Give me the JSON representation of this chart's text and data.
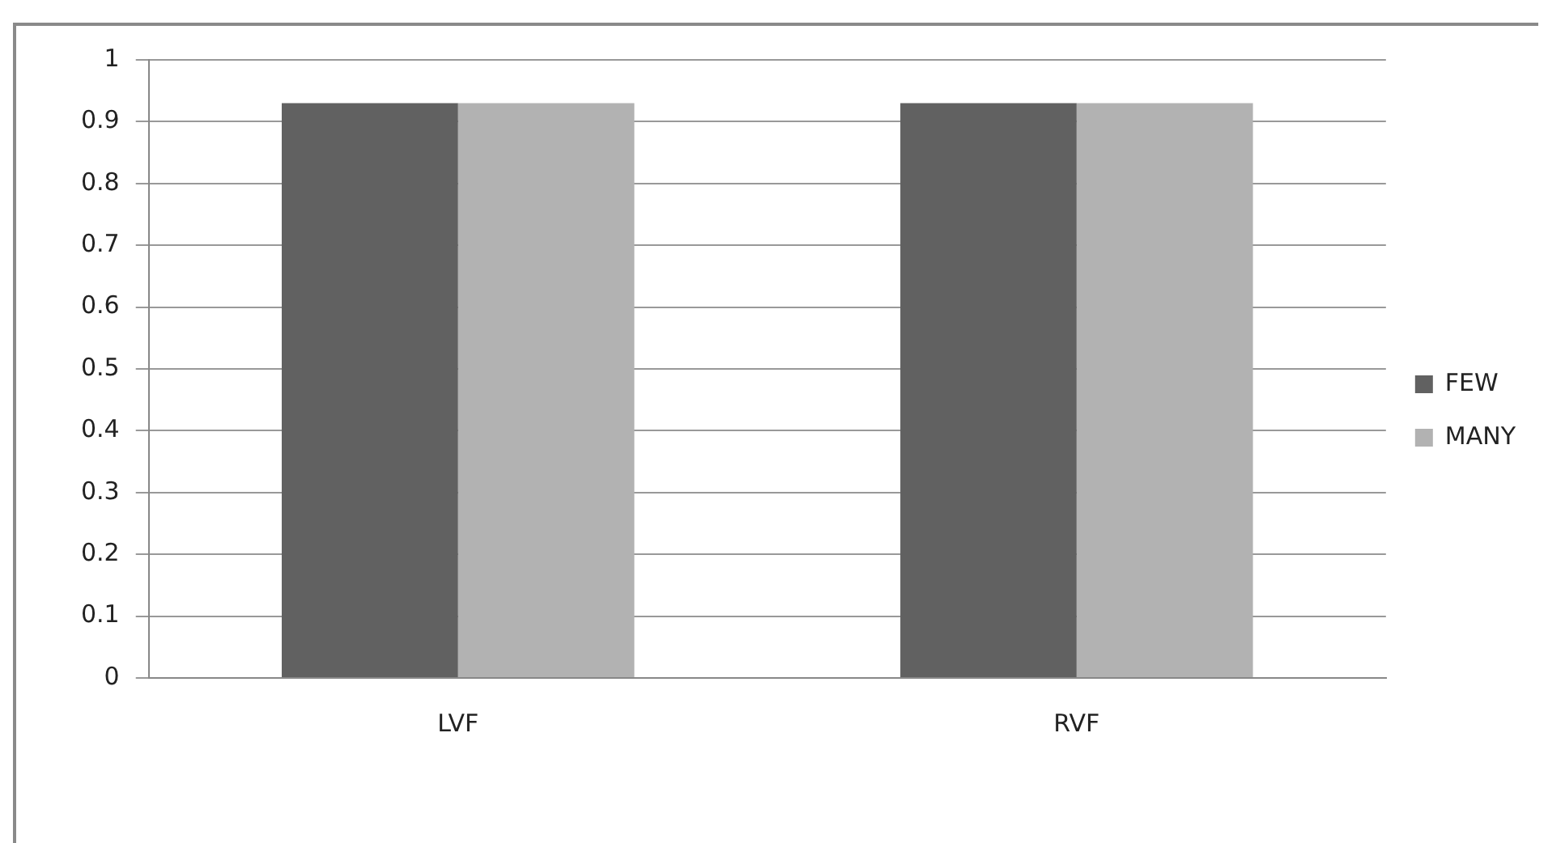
{
  "chart_data": {
    "type": "bar",
    "categories": [
      "LVF",
      "RVF"
    ],
    "series": [
      {
        "name": "FEW",
        "color": "#616161",
        "values": [
          0.93,
          0.93
        ]
      },
      {
        "name": "MANY",
        "color": "#b2b2b2",
        "values": [
          0.93,
          0.93
        ]
      }
    ],
    "ylim": [
      0,
      1
    ],
    "yticks": [
      0,
      0.1,
      0.2,
      0.3,
      0.4,
      0.5,
      0.6,
      0.7,
      0.8,
      0.9,
      1
    ],
    "grid": "y",
    "legend": "right"
  }
}
